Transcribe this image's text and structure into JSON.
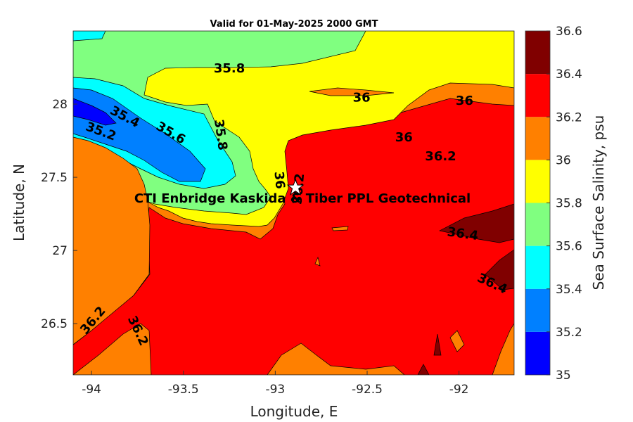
{
  "map": {
    "title": "Valid for 01-May-2025 2000 GMT",
    "xlabel": "Longitude, E",
    "ylabel": "Latitude, N",
    "annotation": "CTI Enbridge  Kaskida & Tiber PPL Geotechnical",
    "site_marker": {
      "icon": "star-icon",
      "lon": -92.89,
      "lat": 27.43
    },
    "extent": {
      "lon": [
        -94.1,
        -91.7
      ],
      "lat": [
        26.15,
        28.5
      ]
    },
    "x_ticks": [
      {
        "value": -94,
        "label": "-94"
      },
      {
        "value": -93.5,
        "label": "-93.5"
      },
      {
        "value": -93,
        "label": "-93"
      },
      {
        "value": -92.5,
        "label": "-92.5"
      },
      {
        "value": -92,
        "label": "-92"
      }
    ],
    "y_ticks": [
      {
        "value": 26.5,
        "label": "26.5"
      },
      {
        "value": 27,
        "label": "27"
      },
      {
        "value": 27.5,
        "label": "27.5"
      },
      {
        "value": 28,
        "label": "28"
      }
    ],
    "contour_labels": [
      {
        "text": "35.8",
        "lon": -93.25,
        "lat": 28.24,
        "rot": 0
      },
      {
        "text": "36",
        "lon": -92.53,
        "lat": 28.04,
        "rot": 0
      },
      {
        "text": "36",
        "lon": -91.97,
        "lat": 28.02,
        "rot": 0
      },
      {
        "text": "36",
        "lon": -92.3,
        "lat": 27.77,
        "rot": 0
      },
      {
        "text": "36.2",
        "lon": -92.1,
        "lat": 27.64,
        "rot": 0
      },
      {
        "text": "35.4",
        "lon": -93.82,
        "lat": 27.91,
        "rot": 28
      },
      {
        "text": "35.6",
        "lon": -93.57,
        "lat": 27.8,
        "rot": 30
      },
      {
        "text": "35.8",
        "lon": -93.3,
        "lat": 27.79,
        "rot": 82
      },
      {
        "text": "35.2",
        "lon": -93.95,
        "lat": 27.81,
        "rot": 20
      },
      {
        "text": "36",
        "lon": -92.98,
        "lat": 27.48,
        "rot": 85
      },
      {
        "text": "36.2",
        "lon": -92.87,
        "lat": 27.42,
        "rot": -85
      },
      {
        "text": "36.4",
        "lon": -91.98,
        "lat": 27.11,
        "rot": 8
      },
      {
        "text": "36.4",
        "lon": -91.82,
        "lat": 26.77,
        "rot": 25
      },
      {
        "text": "36.2",
        "lon": -93.99,
        "lat": 26.52,
        "rot": -50
      },
      {
        "text": "36.2",
        "lon": -93.75,
        "lat": 26.45,
        "rot": 65
      }
    ]
  },
  "colorbar": {
    "label": "Sea Surface Salinity, psu",
    "levels": [
      35,
      35.2,
      35.4,
      35.6,
      35.8,
      36,
      36.2,
      36.4,
      36.6
    ],
    "tick_labels": [
      "35",
      "35.2",
      "35.4",
      "35.6",
      "35.8",
      "36",
      "36.2",
      "36.4",
      "36.6"
    ],
    "colors": [
      "#0000ff",
      "#0080ff",
      "#00ffff",
      "#80ff80",
      "#ffff00",
      "#ff8000",
      "#ff0000",
      "#800000"
    ]
  }
}
